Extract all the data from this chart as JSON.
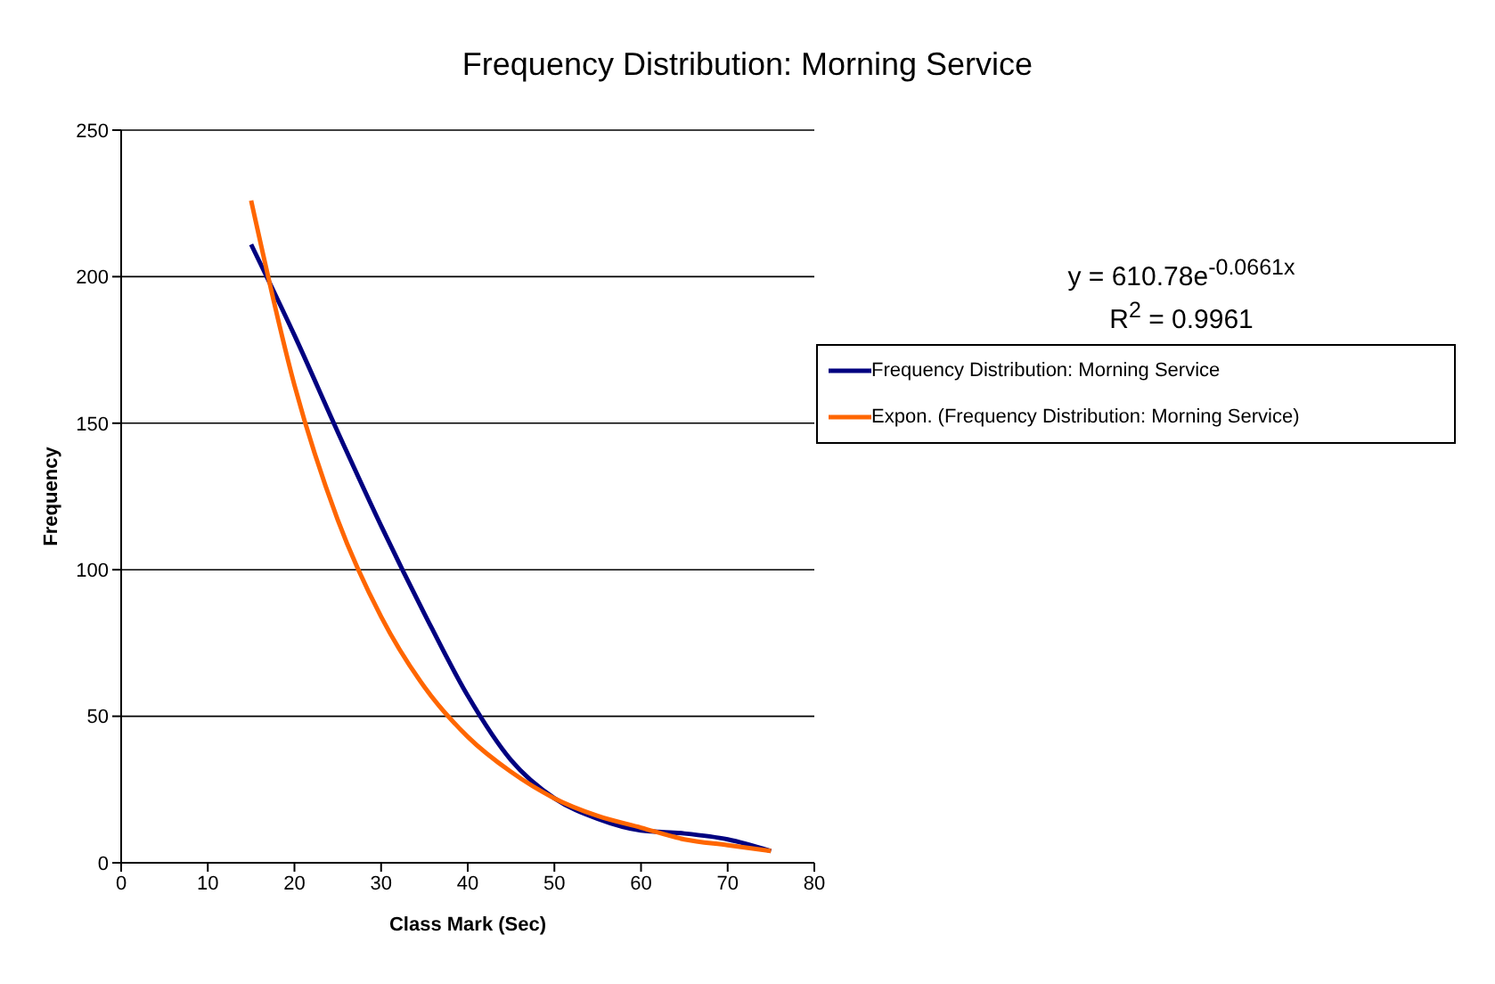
{
  "chart_data": {
    "type": "line",
    "title": "Frequency Distribution: Morning Service",
    "xlabel": "Class Mark (Sec)",
    "ylabel": "Frequency",
    "x": [
      15,
      20,
      25,
      30,
      35,
      40,
      45,
      50,
      55,
      60,
      65,
      70,
      75
    ],
    "series": [
      {
        "name": "Frequency Distribution: Morning Service",
        "color": "#000080",
        "values": [
          211,
          180,
          147,
          115,
          85,
          57,
          35,
          22,
          15,
          11,
          10,
          8,
          4
        ]
      },
      {
        "name": "Expon. (Frequency Distribution: Morning Service)",
        "color": "#ff6600",
        "values": [
          226,
          163,
          117,
          84,
          60,
          43,
          31,
          22,
          16,
          12,
          8,
          6,
          4
        ]
      }
    ],
    "xlim": [
      0,
      80
    ],
    "xticks": [
      0,
      10,
      20,
      30,
      40,
      50,
      60,
      70,
      80
    ],
    "ylim": [
      0,
      250
    ],
    "yticks": [
      0,
      50,
      100,
      150,
      200,
      250
    ],
    "grid": "y",
    "legend": "right",
    "marker": "none",
    "line_style": "solid",
    "annotations": [
      "y = 610.78e$^{-0.0661x}$",
      "R$^{2}$ = 0.9961"
    ]
  }
}
